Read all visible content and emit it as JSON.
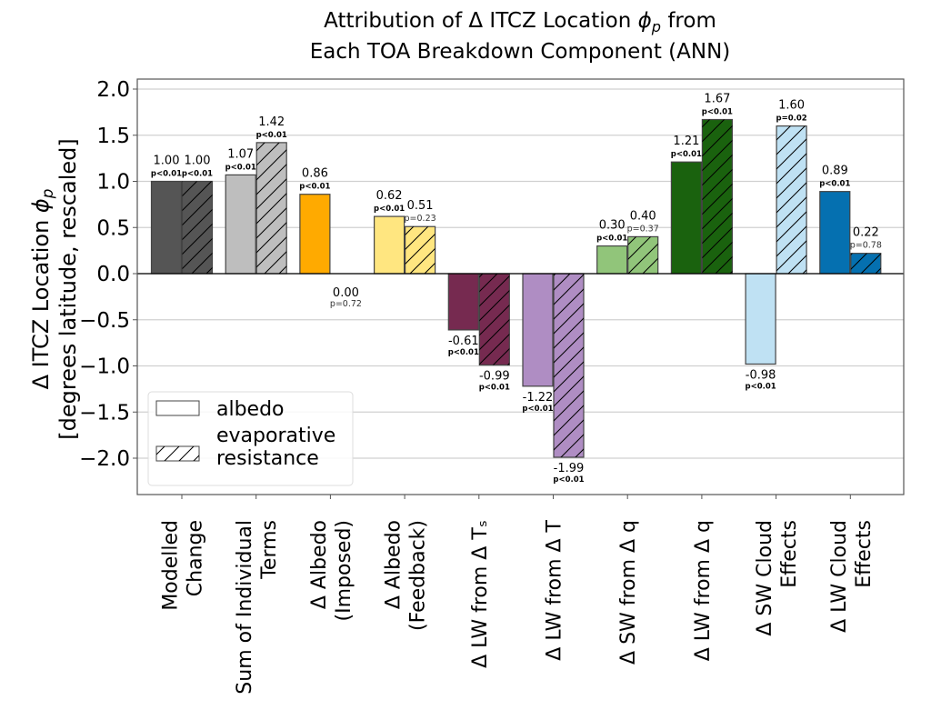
{
  "chart_data": {
    "type": "bar",
    "title": [
      "Attribution of Δ ITCZ Location ϕₚ from",
      "Each TOA Breakdown Component (ANN)"
    ],
    "title_lines": [
      {
        "pre": "Attribution of Δ ITCZ Location ",
        "sym": "ϕ",
        "sub": "p",
        "post": " from"
      },
      {
        "pre": "Each TOA Breakdown Component (ANN)",
        "sym": "",
        "sub": "",
        "post": ""
      }
    ],
    "ylabel_lines": [
      {
        "pre": "Δ ITCZ Location ",
        "sym": "ϕ",
        "sub": "p"
      },
      {
        "pre": "[degrees latitude, rescaled]",
        "sym": "",
        "sub": ""
      }
    ],
    "xlabel": "",
    "ylim": [
      -2.4,
      2.08
    ],
    "yticks": [
      2.0,
      1.5,
      1.0,
      0.5,
      0.0,
      -0.5,
      -1.0,
      -1.5,
      -2.0
    ],
    "ytick_labels": [
      "2.0",
      "1.5",
      "1.0",
      "0.5",
      "0.0",
      "−0.5",
      "−1.0",
      "−1.5",
      "−2.0"
    ],
    "grid": true,
    "legend_position": "lower-left",
    "legend": [
      {
        "label": [
          "albedo"
        ],
        "hatch": false
      },
      {
        "label": [
          "evaporative",
          "resistance"
        ],
        "hatch": true
      }
    ],
    "categories": [
      {
        "lines": [
          "Modelled",
          "Change"
        ],
        "color": "#555555"
      },
      {
        "lines": [
          "Sum of Individual",
          "Terms"
        ],
        "color": "#bebebe"
      },
      {
        "lines": [
          "Δ Albedo",
          "(Imposed)"
        ],
        "color": "#ffaa00"
      },
      {
        "lines": [
          "Δ Albedo",
          "(Feedback)"
        ],
        "color": "#ffe680"
      },
      {
        "lines": [
          "Δ LW from Δ Tₛ"
        ],
        "color": "#762a50"
      },
      {
        "lines": [
          "Δ LW from Δ T"
        ],
        "color": "#af8dc3"
      },
      {
        "lines": [
          "Δ SW from Δ q"
        ],
        "color": "#91c57a"
      },
      {
        "lines": [
          "Δ LW from Δ q"
        ],
        "color": "#1a620e"
      },
      {
        "lines": [
          "Δ SW Cloud",
          "Effects"
        ],
        "color": "#bfe1f3"
      },
      {
        "lines": [
          "Δ LW Cloud",
          "Effects"
        ],
        "color": "#0570b0"
      }
    ],
    "series": [
      {
        "name": "albedo",
        "hatch": false,
        "values": [
          1.0,
          1.07,
          0.86,
          0.62,
          -0.61,
          -1.22,
          0.3,
          1.21,
          -0.98,
          0.89
        ],
        "value_labels": [
          "1.00",
          "1.07",
          "0.86",
          "0.62",
          "-0.61",
          "-1.22",
          "0.30",
          "1.21",
          "-0.98",
          "0.89"
        ],
        "p_labels": [
          "p<0.01",
          "p<0.01",
          "p<0.01",
          "p<0.01",
          "p<0.01",
          "p<0.01",
          "p<0.01",
          "p<0.01",
          "p<0.01",
          "p<0.01"
        ],
        "significant": [
          true,
          true,
          true,
          true,
          true,
          true,
          true,
          true,
          true,
          true
        ]
      },
      {
        "name": "evaporative resistance",
        "hatch": true,
        "values": [
          1.0,
          1.42,
          0.0,
          0.51,
          -0.99,
          -1.99,
          0.4,
          1.67,
          1.6,
          0.22
        ],
        "value_labels": [
          "1.00",
          "1.42",
          "0.00",
          "0.51",
          "-0.99",
          "-1.99",
          "0.40",
          "1.67",
          "1.60",
          "0.22"
        ],
        "p_labels": [
          "p<0.01",
          "p<0.01",
          "p=0.72",
          "p=0.23",
          "p<0.01",
          "p<0.01",
          "p=0.37",
          "p<0.01",
          "p=0.02",
          "p=0.78"
        ],
        "significant": [
          true,
          true,
          false,
          false,
          true,
          true,
          false,
          true,
          true,
          false
        ]
      }
    ]
  }
}
